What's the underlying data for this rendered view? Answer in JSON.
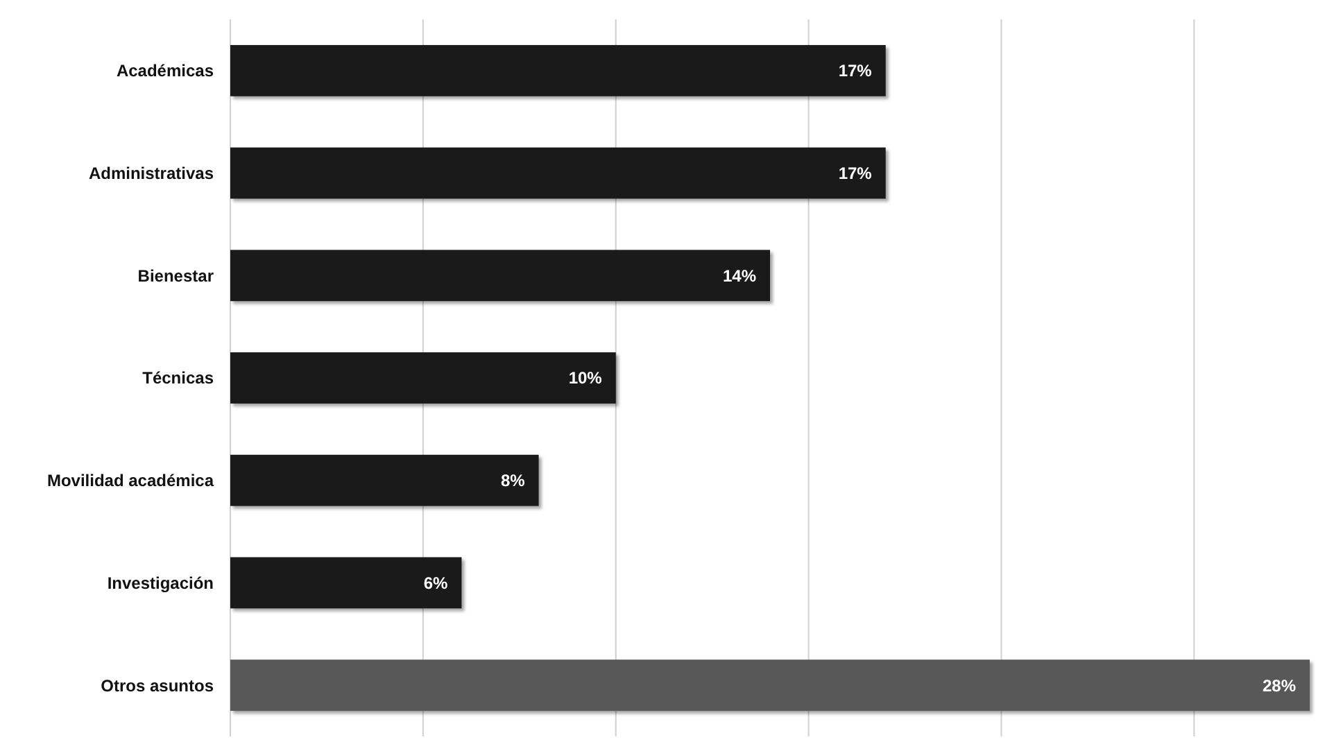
{
  "chart_data": {
    "type": "bar",
    "orientation": "horizontal",
    "categories": [
      "Académicas",
      "Administrativas",
      "Bienestar",
      "Técnicas",
      "Movilidad académica",
      "Investigación",
      "Otros asuntos"
    ],
    "values": [
      17,
      17,
      14,
      10,
      8,
      6,
      28
    ],
    "colors": [
      "#1a1a1a",
      "#1a1a1a",
      "#1a1a1a",
      "#1a1a1a",
      "#1a1a1a",
      "#1a1a1a",
      "#585858"
    ],
    "value_labels": [
      "17%",
      "17%",
      "14%",
      "10%",
      "8%",
      "6%",
      "28%"
    ],
    "xticks": [
      {
        "value": 0,
        "label": null
      },
      {
        "value": 5,
        "label": null
      },
      {
        "value": 10,
        "label": null
      },
      {
        "value": 15,
        "label": null
      },
      {
        "value": 20,
        "label": null
      },
      {
        "value": 25,
        "label": null
      }
    ],
    "grid": "x",
    "tick_labels": "y"
  }
}
